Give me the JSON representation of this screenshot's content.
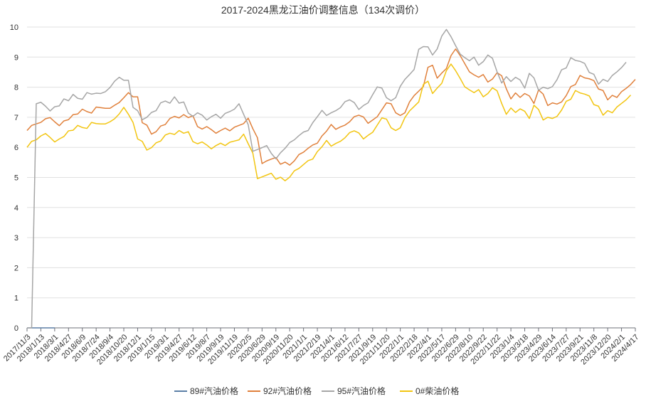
{
  "chart_data": {
    "type": "line",
    "title": "2017-2024黑龙江油价调整信息（134次调价）",
    "ylim": [
      0,
      10
    ],
    "yticks": [
      0,
      1,
      2,
      3,
      4,
      5,
      6,
      7,
      8,
      9,
      10
    ],
    "grid": true,
    "legend": "bottom",
    "xtick_labels": [
      "2017/11/3",
      "2018/1/13",
      "2018/3/1",
      "2018/4/27",
      "2018/6/9",
      "2018/7/24",
      "2018/9/4",
      "2018/10/20",
      "2018/12/1",
      "2019/1/15",
      "2019/3/1",
      "2019/4/27",
      "2019/6/12",
      "2019/8/7",
      "2019/9/19",
      "2019/11/19",
      "2020/2/5",
      "2020/6/29",
      "2020/9/19",
      "2020/11/20",
      "2021/1/1",
      "2021/2/19",
      "2021/4/1",
      "2021/6/12",
      "2021/7/27",
      "2021/9/19",
      "2021/11/20",
      "2022/1/1",
      "2022/2/18",
      "2022/4/1",
      "2022/5/17",
      "2022/6/29",
      "2022/8/10",
      "2022/9/22",
      "2022/11/22",
      "2023/1/4",
      "2023/3/18",
      "2023/4/29",
      "2023/6/14",
      "2023/7/27",
      "2023/9/21",
      "2023/11/8",
      "2023/12/20",
      "2024/2/1",
      "2024/4/17"
    ],
    "series": [
      {
        "name": "89#汽油价格",
        "color": "#5b7fa6",
        "values": [
          0,
          0,
          0,
          0,
          0,
          0,
          0
        ]
      },
      {
        "name": "92#汽油价格",
        "color": "#e0803b",
        "values": [
          6.56,
          6.73,
          6.78,
          6.83,
          6.95,
          6.99,
          6.85,
          6.72,
          6.88,
          6.92,
          7.09,
          7.11,
          7.27,
          7.19,
          7.14,
          7.34,
          7.32,
          7.3,
          7.3,
          7.4,
          7.49,
          7.65,
          7.82,
          7.68,
          7.68,
          6.82,
          6.74,
          6.44,
          6.52,
          6.71,
          6.76,
          6.96,
          7.03,
          6.98,
          7.09,
          6.99,
          7.05,
          6.69,
          6.61,
          6.69,
          6.59,
          6.47,
          6.56,
          6.64,
          6.55,
          6.67,
          6.73,
          6.79,
          6.97,
          6.62,
          6.32,
          5.46,
          5.55,
          5.61,
          5.66,
          5.44,
          5.51,
          5.41,
          5.55,
          5.76,
          5.84,
          5.97,
          6.08,
          6.14,
          6.38,
          6.54,
          6.76,
          6.6,
          6.68,
          6.74,
          6.85,
          7.02,
          7.07,
          7.01,
          6.8,
          6.91,
          7.02,
          7.25,
          7.48,
          7.45,
          7.15,
          7.06,
          7.15,
          7.51,
          7.72,
          7.87,
          8.02,
          8.66,
          8.73,
          8.3,
          8.47,
          8.62,
          9.05,
          9.27,
          9.05,
          8.78,
          8.51,
          8.41,
          8.33,
          8.42,
          8.17,
          8.27,
          8.48,
          8.38,
          7.95,
          7.61,
          7.81,
          7.66,
          7.79,
          7.71,
          7.46,
          7.91,
          7.77,
          7.39,
          7.48,
          7.44,
          7.51,
          7.72,
          8.02,
          8.09,
          8.39,
          8.31,
          8.28,
          8.22,
          7.94,
          7.89,
          7.58,
          7.73,
          7.66,
          7.85,
          7.96,
          8.09,
          8.26
        ]
      },
      {
        "name": "95#汽油价格",
        "color": "#a6a6a6",
        "values": [
          0,
          0,
          7.45,
          7.5,
          7.37,
          7.21,
          7.35,
          7.38,
          7.61,
          7.55,
          7.76,
          7.63,
          7.6,
          7.82,
          7.77,
          7.8,
          7.79,
          7.85,
          7.99,
          8.2,
          8.33,
          8.23,
          8.23,
          7.33,
          7.22,
          6.92,
          7.0,
          7.16,
          7.22,
          7.48,
          7.54,
          7.47,
          7.68,
          7.47,
          7.51,
          7.14,
          7.03,
          7.15,
          7.07,
          6.91,
          7.02,
          7.1,
          6.97,
          7.13,
          7.19,
          7.27,
          7.45,
          7.1,
          6.75,
          5.87,
          5.93,
          5.99,
          6.06,
          5.8,
          5.62,
          5.82,
          5.97,
          6.16,
          6.25,
          6.39,
          6.51,
          6.56,
          6.82,
          7.02,
          7.23,
          7.06,
          7.15,
          7.22,
          7.32,
          7.52,
          7.58,
          7.49,
          7.26,
          7.39,
          7.48,
          7.75,
          8.01,
          7.97,
          7.65,
          7.55,
          7.65,
          8.03,
          8.26,
          8.42,
          8.59,
          9.26,
          9.35,
          9.34,
          9.07,
          9.27,
          9.7,
          9.92,
          9.68,
          9.38,
          9.1,
          8.98,
          8.88,
          9.0,
          8.73,
          8.85,
          9.07,
          8.96,
          8.51,
          8.14,
          8.35,
          8.19,
          8.33,
          8.24,
          7.97,
          8.46,
          8.31,
          7.9,
          8.0,
          7.95,
          8.02,
          8.25,
          8.58,
          8.64,
          8.98,
          8.89,
          8.86,
          8.79,
          8.49,
          8.43,
          8.1,
          8.26,
          8.19,
          8.39,
          8.51,
          8.65,
          8.83
        ]
      },
      {
        "name": "0#柴油价格",
        "color": "#f2c511",
        "values": [
          6.0,
          6.2,
          6.25,
          6.38,
          6.46,
          6.33,
          6.18,
          6.28,
          6.36,
          6.55,
          6.57,
          6.73,
          6.66,
          6.63,
          6.83,
          6.79,
          6.78,
          6.78,
          6.85,
          6.95,
          7.11,
          7.33,
          7.1,
          6.83,
          6.28,
          6.2,
          5.91,
          5.99,
          6.15,
          6.21,
          6.41,
          6.47,
          6.43,
          6.56,
          6.47,
          6.52,
          6.19,
          6.12,
          6.18,
          6.08,
          5.95,
          6.06,
          6.14,
          6.06,
          6.17,
          6.21,
          6.25,
          6.44,
          6.12,
          5.81,
          4.96,
          5.02,
          5.08,
          5.14,
          4.94,
          5.01,
          4.89,
          5.01,
          5.22,
          5.3,
          5.43,
          5.56,
          5.61,
          5.86,
          6.02,
          6.23,
          6.04,
          6.13,
          6.2,
          6.32,
          6.49,
          6.55,
          6.48,
          6.28,
          6.4,
          6.5,
          6.74,
          6.98,
          6.94,
          6.65,
          6.56,
          6.65,
          6.99,
          7.21,
          7.36,
          7.51,
          8.09,
          8.2,
          7.79,
          7.97,
          8.13,
          8.55,
          8.77,
          8.55,
          8.29,
          8.01,
          7.91,
          7.82,
          7.92,
          7.68,
          7.79,
          7.98,
          7.88,
          7.46,
          7.1,
          7.31,
          7.16,
          7.28,
          7.2,
          6.96,
          7.4,
          7.26,
          6.91,
          7.0,
          6.96,
          7.03,
          7.24,
          7.53,
          7.6,
          7.89,
          7.81,
          7.77,
          7.71,
          7.42,
          7.37,
          7.07,
          7.22,
          7.15,
          7.34,
          7.46,
          7.58,
          7.74
        ]
      }
    ]
  }
}
